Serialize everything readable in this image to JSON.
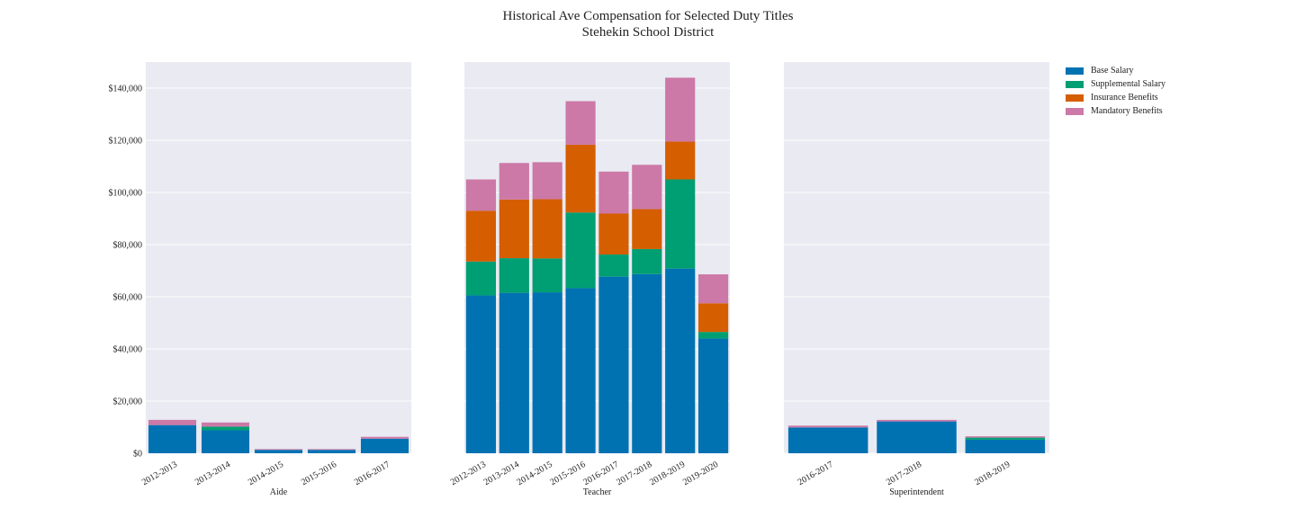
{
  "title": {
    "line1": "Historical Ave Compensation for Selected Duty Titles",
    "line2": "Stehekin School District"
  },
  "legend": {
    "placement": "right-top",
    "items": [
      {
        "label": "Base Salary",
        "color": "#0072b2"
      },
      {
        "label": "Supplemental Salary",
        "color": "#009e73"
      },
      {
        "label": "Insurance Benefits",
        "color": "#d55e00"
      },
      {
        "label": "Mandatory Benefits",
        "color": "#cc79a7"
      }
    ]
  },
  "chart_data": [
    {
      "type": "bar",
      "stacked": true,
      "xlabel": "Aide",
      "ylabel": "",
      "ylim": [
        0,
        150000
      ],
      "yticks": [
        "$0",
        "$20,000",
        "$40,000",
        "$60,000",
        "$80,000",
        "$100,000",
        "$120,000",
        "$140,000"
      ],
      "grid": true,
      "categories": [
        "2012-2013",
        "2013-2014",
        "2014-2015",
        "2015-2016",
        "2016-2017"
      ],
      "series": [
        {
          "name": "Base Salary",
          "values": [
            10800,
            8800,
            1300,
            1300,
            5600
          ]
        },
        {
          "name": "Supplemental Salary",
          "values": [
            0,
            1400,
            0,
            0,
            0
          ]
        },
        {
          "name": "Insurance Benefits",
          "values": [
            0,
            0,
            0,
            0,
            0
          ]
        },
        {
          "name": "Mandatory Benefits",
          "values": [
            2000,
            1600,
            300,
            300,
            700
          ]
        }
      ]
    },
    {
      "type": "bar",
      "stacked": true,
      "xlabel": "Teacher",
      "ylabel": "",
      "ylim": [
        0,
        150000
      ],
      "grid": true,
      "categories": [
        "2012-2013",
        "2013-2014",
        "2014-2015",
        "2015-2016",
        "2016-2017",
        "2017-2018",
        "2018-2019",
        "2019-2020"
      ],
      "series": [
        {
          "name": "Base Salary",
          "values": [
            60500,
            61500,
            61700,
            63300,
            67700,
            68700,
            70800,
            44000
          ]
        },
        {
          "name": "Supplemental Salary",
          "values": [
            13000,
            13300,
            13000,
            29000,
            8500,
            9600,
            34200,
            2500
          ]
        },
        {
          "name": "Insurance Benefits",
          "values": [
            19500,
            22500,
            22700,
            26000,
            15700,
            15300,
            14500,
            11000
          ]
        },
        {
          "name": "Mandatory Benefits",
          "values": [
            12000,
            14000,
            14200,
            16700,
            16100,
            17000,
            24500,
            11100
          ]
        }
      ]
    },
    {
      "type": "bar",
      "stacked": true,
      "xlabel": "Superintendent",
      "ylabel": "",
      "ylim": [
        0,
        150000
      ],
      "grid": true,
      "categories": [
        "2016-2017",
        "2017-2018",
        "2018-2019"
      ],
      "series": [
        {
          "name": "Base Salary",
          "values": [
            9900,
            12200,
            5200
          ]
        },
        {
          "name": "Supplemental Salary",
          "values": [
            0,
            0,
            800
          ]
        },
        {
          "name": "Insurance Benefits",
          "values": [
            0,
            0,
            0
          ]
        },
        {
          "name": "Mandatory Benefits",
          "values": [
            700,
            600,
            500
          ]
        }
      ]
    }
  ]
}
